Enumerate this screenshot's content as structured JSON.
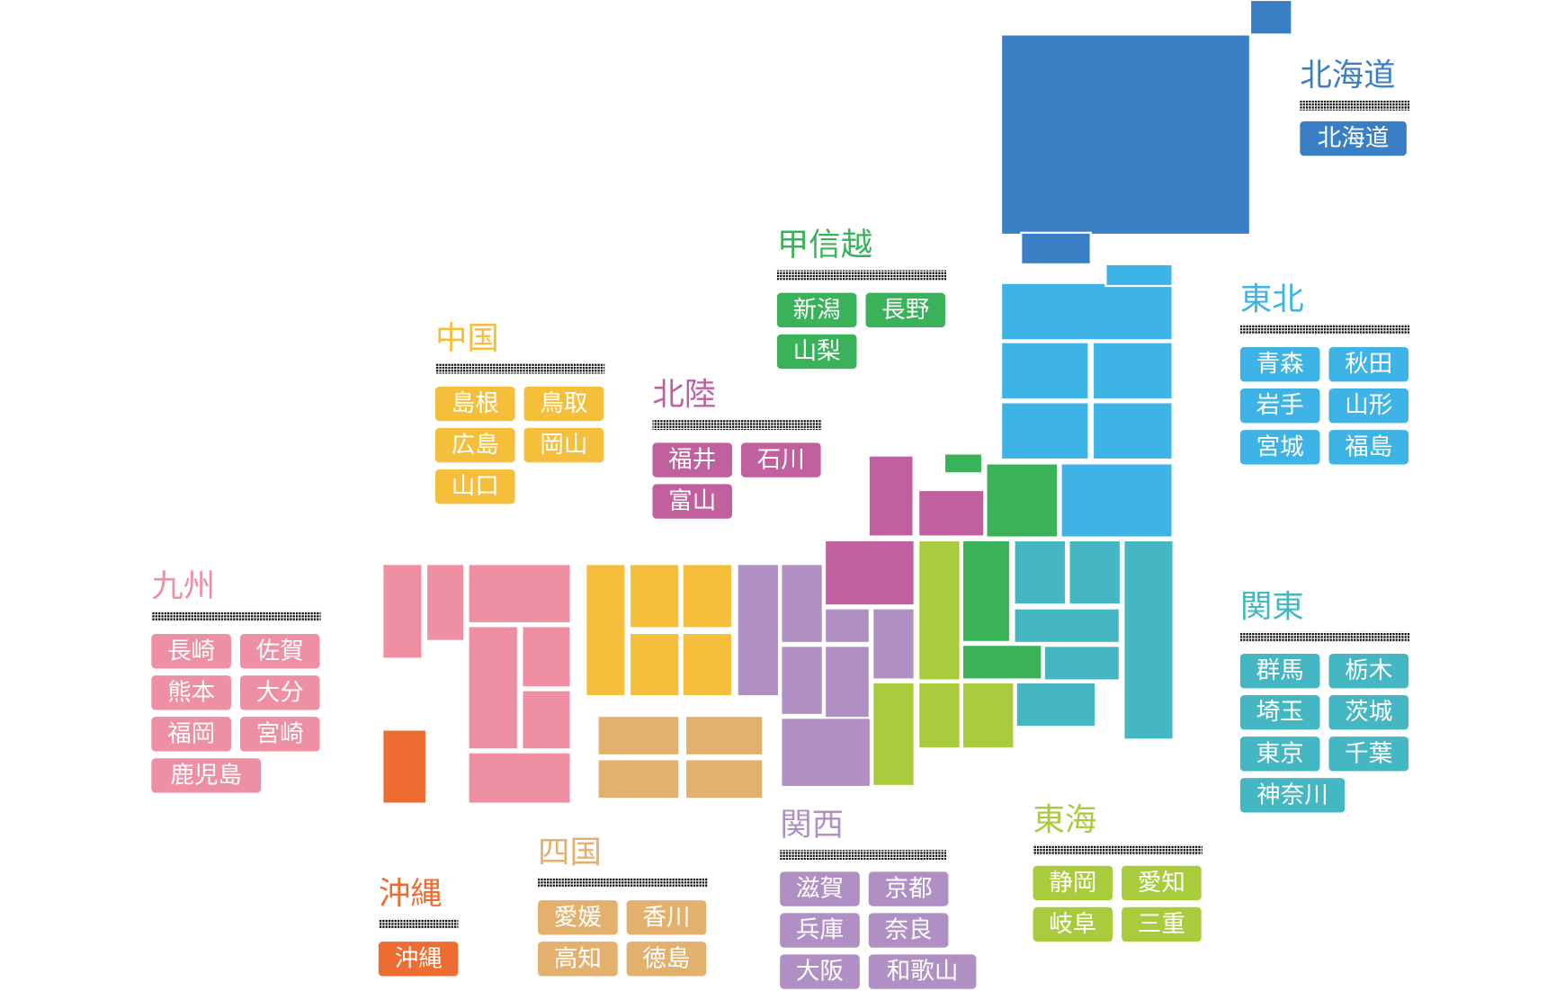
{
  "regions": [
    {
      "name": "北海道",
      "color": "#3a7fc4",
      "prefectures": [
        "北海道"
      ]
    },
    {
      "name": "東北",
      "color": "#3db3e6",
      "prefectures": [
        "青森",
        "秋田",
        "岩手",
        "山形",
        "宮城",
        "福島"
      ]
    },
    {
      "name": "関東",
      "color": "#45b7c2",
      "prefectures": [
        "群馬",
        "栃木",
        "埼玉",
        "茨城",
        "東京",
        "千葉",
        "神奈川"
      ]
    },
    {
      "name": "甲信越",
      "color": "#3ab25a",
      "prefectures": [
        "新潟",
        "長野",
        "山梨"
      ]
    },
    {
      "name": "中国",
      "color": "#f5bf3c",
      "prefectures": [
        "島根",
        "鳥取",
        "広島",
        "岡山",
        "山口"
      ]
    },
    {
      "name": "北陸",
      "color": "#c0609f",
      "prefectures": [
        "福井",
        "石川",
        "富山"
      ]
    },
    {
      "name": "九州",
      "color": "#ee8fa4",
      "prefectures": [
        "長崎",
        "佐賀",
        "熊本",
        "大分",
        "福岡",
        "宮崎",
        "鹿児島"
      ]
    },
    {
      "name": "関西",
      "color": "#b090c4",
      "prefectures": [
        "滋賀",
        "京都",
        "兵庫",
        "奈良",
        "大阪",
        "和歌山"
      ]
    },
    {
      "name": "東海",
      "color": "#a8cc3c",
      "prefectures": [
        "静岡",
        "愛知",
        "岐阜",
        "三重"
      ]
    },
    {
      "name": "四国",
      "color": "#e4b06e",
      "prefectures": [
        "愛媛",
        "香川",
        "高知",
        "徳島"
      ]
    },
    {
      "name": "沖縄",
      "color": "#ec6c32",
      "prefectures": [
        "沖縄"
      ]
    }
  ]
}
